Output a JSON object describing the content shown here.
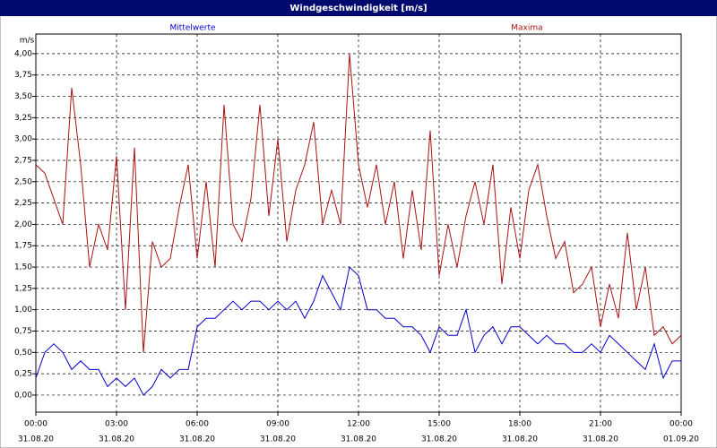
{
  "chart_data": {
    "type": "line",
    "title": "Windgeschwindigkeit [m/s]",
    "y_label": "m/s",
    "x": [
      0,
      20,
      40,
      60,
      80,
      100,
      120,
      140,
      160,
      180,
      200,
      220,
      240,
      260,
      280,
      300,
      320,
      340,
      360,
      380,
      400,
      420,
      440,
      460,
      480,
      500,
      520,
      540,
      560,
      580,
      600,
      620,
      640,
      660,
      680,
      700,
      720,
      740,
      760,
      780,
      800,
      820,
      840,
      860,
      880,
      900,
      920,
      940,
      960,
      980,
      1000,
      1020,
      1040,
      1060,
      1080,
      1100,
      1120,
      1140,
      1160,
      1180,
      1200,
      1220,
      1240,
      1260,
      1280,
      1300,
      1320,
      1340,
      1360,
      1380,
      1400,
      1420,
      1440
    ],
    "series": [
      {
        "name": "Mittelwerte",
        "color": "#0000cc",
        "values": [
          0.2,
          0.5,
          0.6,
          0.5,
          0.3,
          0.4,
          0.3,
          0.3,
          0.1,
          0.2,
          0.1,
          0.2,
          0.0,
          0.1,
          0.3,
          0.2,
          0.3,
          0.3,
          0.8,
          0.9,
          0.9,
          1.0,
          1.1,
          1.0,
          1.1,
          1.1,
          1.0,
          1.1,
          1.0,
          1.1,
          0.9,
          1.1,
          1.4,
          1.2,
          1.0,
          1.5,
          1.4,
          1.0,
          1.0,
          0.9,
          0.9,
          0.8,
          0.8,
          0.7,
          0.5,
          0.8,
          0.7,
          0.7,
          1.0,
          0.5,
          0.7,
          0.8,
          0.6,
          0.8,
          0.8,
          0.7,
          0.6,
          0.7,
          0.6,
          0.6,
          0.5,
          0.5,
          0.6,
          0.5,
          0.7,
          0.6,
          0.5,
          0.4,
          0.3,
          0.6,
          0.2,
          0.4,
          0.4
        ]
      },
      {
        "name": "Maxima",
        "color": "#aa1111",
        "values": [
          2.7,
          2.6,
          2.3,
          2.0,
          3.6,
          2.7,
          1.5,
          2.0,
          1.7,
          2.8,
          1.0,
          2.9,
          0.5,
          1.8,
          1.5,
          1.6,
          2.2,
          2.7,
          1.6,
          2.5,
          1.5,
          3.4,
          2.0,
          1.8,
          2.3,
          3.4,
          2.1,
          3.0,
          1.8,
          2.4,
          2.7,
          3.2,
          2.0,
          2.4,
          2.0,
          4.0,
          2.7,
          2.2,
          2.7,
          2.0,
          2.5,
          1.6,
          2.4,
          1.7,
          3.1,
          1.4,
          2.0,
          1.5,
          2.1,
          2.5,
          2.0,
          2.7,
          1.3,
          2.2,
          1.6,
          2.4,
          2.7,
          2.1,
          1.6,
          1.8,
          1.2,
          1.3,
          1.5,
          0.8,
          1.3,
          0.9,
          1.9,
          1.0,
          1.5,
          0.7,
          0.8,
          0.6,
          0.7
        ]
      }
    ],
    "xlim": [
      0,
      1440
    ],
    "xticks": [
      {
        "value": 0,
        "label": "00:00"
      },
      {
        "value": 180,
        "label": "03:00"
      },
      {
        "value": 360,
        "label": "06:00"
      },
      {
        "value": 540,
        "label": "09:00"
      },
      {
        "value": 720,
        "label": "12:00"
      },
      {
        "value": 900,
        "label": "15:00"
      },
      {
        "value": 1080,
        "label": "18:00"
      },
      {
        "value": 1260,
        "label": "21:00"
      },
      {
        "value": 1440,
        "label": "00:00"
      }
    ],
    "xtick_dates": [
      "31.08.20",
      "31.08.20",
      "31.08.20",
      "31.08.20",
      "31.08.20",
      "31.08.20",
      "31.08.20",
      "31.08.20",
      "01.09.20"
    ],
    "ylim": [
      -0.2,
      4.23
    ],
    "yticks": [
      {
        "value": 0,
        "label": "0,00"
      },
      {
        "value": 0.25,
        "label": "0,25"
      },
      {
        "value": 0.5,
        "label": "0,50"
      },
      {
        "value": 0.75,
        "label": "0,75"
      },
      {
        "value": 1,
        "label": "1,00"
      },
      {
        "value": 1.25,
        "label": "1,25"
      },
      {
        "value": 1.5,
        "label": "1,50"
      },
      {
        "value": 1.75,
        "label": "1,75"
      },
      {
        "value": 2,
        "label": "2,00"
      },
      {
        "value": 2.25,
        "label": "2,25"
      },
      {
        "value": 2.5,
        "label": "2,50"
      },
      {
        "value": 2.75,
        "label": "2,75"
      },
      {
        "value": 3,
        "label": "3,00"
      },
      {
        "value": 3.25,
        "label": "3,25"
      },
      {
        "value": 3.5,
        "label": "3,50"
      },
      {
        "value": 3.75,
        "label": "3,75"
      },
      {
        "value": 4,
        "label": "4,00"
      }
    ],
    "grid": true
  }
}
